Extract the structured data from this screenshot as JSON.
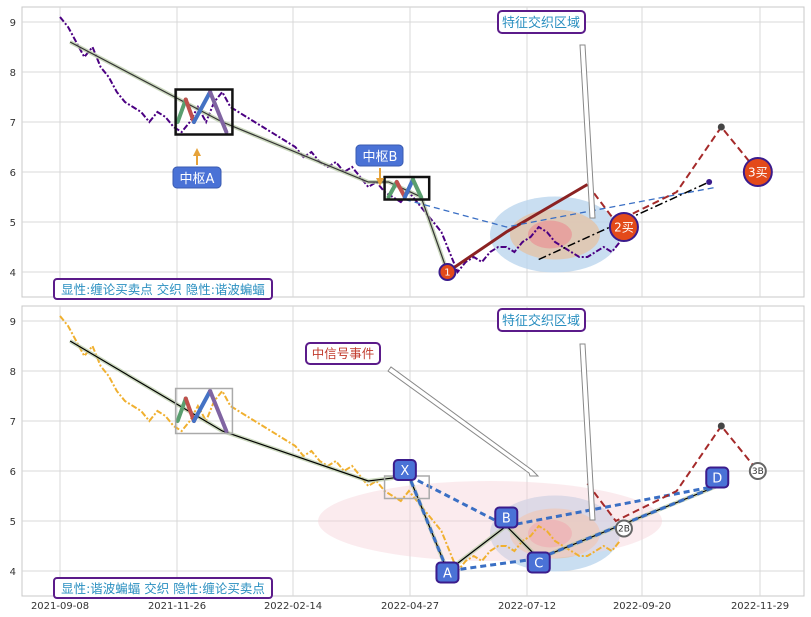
{
  "chart_data": [
    {
      "type": "line",
      "panel": "top",
      "ylim": [
        3.5,
        9.3
      ],
      "yticks": [
        4,
        5,
        6,
        7,
        8,
        9
      ],
      "grid": true,
      "series": [
        {
          "role": "price",
          "color": "#4B0082",
          "style": "dashdot",
          "points": [
            [
              0.0,
              9.1
            ],
            [
              2,
              8.9
            ],
            [
              4,
              8.6
            ],
            [
              6,
              8.3
            ],
            [
              8,
              8.5
            ],
            [
              10,
              8.1
            ],
            [
              12,
              7.9
            ],
            [
              14,
              7.6
            ],
            [
              16,
              7.4
            ],
            [
              18,
              7.3
            ],
            [
              20,
              7.2
            ],
            [
              22,
              7.0
            ],
            [
              24,
              7.2
            ],
            [
              26,
              7.1
            ],
            [
              28,
              6.9
            ],
            [
              30,
              6.8
            ],
            [
              32,
              7.0
            ],
            [
              34,
              7.3
            ],
            [
              36,
              7.0
            ],
            [
              38,
              7.4
            ],
            [
              40,
              7.6
            ],
            [
              42,
              7.3
            ],
            [
              44,
              7.2
            ],
            [
              46,
              7.1
            ],
            [
              48,
              7.0
            ],
            [
              50,
              6.9
            ],
            [
              52,
              6.8
            ],
            [
              54,
              6.7
            ],
            [
              56,
              6.6
            ],
            [
              58,
              6.5
            ],
            [
              60,
              6.3
            ],
            [
              62,
              6.4
            ],
            [
              64,
              6.2
            ],
            [
              66,
              6.1
            ],
            [
              68,
              6.2
            ],
            [
              70,
              6.0
            ],
            [
              72,
              6.1
            ],
            [
              74,
              5.9
            ],
            [
              76,
              5.7
            ],
            [
              78,
              5.8
            ],
            [
              80,
              5.6
            ],
            [
              82,
              5.5
            ],
            [
              84,
              5.4
            ],
            [
              86,
              5.6
            ],
            [
              88,
              5.4
            ],
            [
              90,
              5.2
            ],
            [
              92,
              5.0
            ],
            [
              94,
              4.8
            ],
            [
              96,
              4.4
            ],
            [
              98,
              4.0
            ],
            [
              100,
              4.2
            ],
            [
              102,
              4.3
            ],
            [
              104,
              4.2
            ],
            [
              106,
              4.4
            ],
            [
              108,
              4.5
            ],
            [
              110,
              4.5
            ],
            [
              112,
              4.4
            ],
            [
              114,
              4.6
            ],
            [
              116,
              4.7
            ],
            [
              118,
              4.9
            ],
            [
              120,
              4.8
            ],
            [
              122,
              4.6
            ],
            [
              124,
              4.5
            ],
            [
              126,
              4.4
            ],
            [
              128,
              4.3
            ],
            [
              130,
              4.3
            ],
            [
              132,
              4.4
            ],
            [
              134,
              4.5
            ],
            [
              136,
              4.4
            ],
            [
              138,
              4.6
            ]
          ]
        },
        {
          "role": "stroke-line",
          "color": "#333333",
          "points": [
            [
              2.5,
              8.6
            ],
            [
              40,
              7.0
            ],
            [
              76,
              5.8
            ],
            [
              81,
              5.8
            ],
            [
              89,
              5.5
            ],
            [
              95.5,
              4.0
            ]
          ]
        },
        {
          "role": "center-A-zigzag",
          "points": [
            [
              29,
              7.0
            ],
            [
              31,
              7.45
            ],
            [
              33,
              7.0
            ],
            [
              37,
              7.6
            ],
            [
              41,
              6.8
            ]
          ],
          "colors": [
            "#5a9e6f",
            "#c0504d",
            "#4472c4",
            "#8064a2"
          ]
        },
        {
          "role": "center-B-zigzag",
          "points": [
            [
              81,
              5.5
            ],
            [
              83,
              5.8
            ],
            [
              85,
              5.5
            ],
            [
              87,
              5.85
            ],
            [
              89,
              5.5
            ]
          ],
          "colors": [
            "#5a9e6f",
            "#c0504d",
            "#4472c4"
          ]
        },
        {
          "role": "trend-up",
          "color": "#8B2222",
          "points": [
            [
              95.5,
              4.0
            ],
            [
              110,
              4.8
            ],
            [
              130,
              5.75
            ]
          ]
        },
        {
          "role": "dashed-projection",
          "color": "#3a6fc4",
          "points": [
            [
              85,
              5.45
            ],
            [
              110,
              4.9
            ],
            [
              162,
              5.7
            ]
          ]
        },
        {
          "role": "red-dashed",
          "color": "#a52a2a",
          "points": [
            [
              130,
              5.75
            ],
            [
              137,
              5.0
            ],
            [
              152,
              5.6
            ],
            [
              163,
              6.9
            ],
            [
              172,
              6.0
            ]
          ]
        },
        {
          "role": "dashdot-black",
          "color": "#000000",
          "points": [
            [
              118,
              4.25
            ],
            [
              160,
              5.8
            ]
          ]
        }
      ],
      "labels": {
        "center_a": "中枢A",
        "center_b": "中枢B",
        "zone_title": "特征交织区域",
        "legend": "显性:缠论买卖点 交织 隐性:谐波蝙蝠",
        "point_1": "1",
        "point_2": "2买",
        "point_3": "3买"
      }
    },
    {
      "type": "line",
      "panel": "bottom",
      "ylim": [
        3.5,
        9.3
      ],
      "yticks": [
        4,
        5,
        6,
        7,
        8,
        9
      ],
      "grid": true,
      "x_tick_labels": [
        "2021-09-08",
        "2021-11-26",
        "2022-02-14",
        "2022-04-27",
        "2022-07-12",
        "2022-09-20",
        "2022-11-29"
      ],
      "series": [
        {
          "role": "price",
          "color": "#f0b030",
          "style": "dashdot",
          "points": [
            [
              0.0,
              9.1
            ],
            [
              2,
              8.9
            ],
            [
              4,
              8.6
            ],
            [
              6,
              8.3
            ],
            [
              8,
              8.5
            ],
            [
              10,
              8.1
            ],
            [
              12,
              7.9
            ],
            [
              14,
              7.6
            ],
            [
              16,
              7.4
            ],
            [
              18,
              7.3
            ],
            [
              20,
              7.2
            ],
            [
              22,
              7.0
            ],
            [
              24,
              7.2
            ],
            [
              26,
              7.1
            ],
            [
              28,
              6.9
            ],
            [
              30,
              6.8
            ],
            [
              32,
              7.0
            ],
            [
              34,
              7.3
            ],
            [
              36,
              7.0
            ],
            [
              38,
              7.4
            ],
            [
              40,
              7.6
            ],
            [
              42,
              7.3
            ],
            [
              44,
              7.2
            ],
            [
              46,
              7.1
            ],
            [
              48,
              7.0
            ],
            [
              50,
              6.9
            ],
            [
              52,
              6.8
            ],
            [
              54,
              6.7
            ],
            [
              56,
              6.6
            ],
            [
              58,
              6.5
            ],
            [
              60,
              6.3
            ],
            [
              62,
              6.4
            ],
            [
              64,
              6.2
            ],
            [
              66,
              6.1
            ],
            [
              68,
              6.2
            ],
            [
              70,
              6.0
            ],
            [
              72,
              6.1
            ],
            [
              74,
              5.9
            ],
            [
              76,
              5.7
            ],
            [
              78,
              5.8
            ],
            [
              80,
              5.6
            ],
            [
              82,
              5.5
            ],
            [
              84,
              5.4
            ],
            [
              86,
              5.6
            ],
            [
              88,
              5.4
            ],
            [
              90,
              5.2
            ],
            [
              92,
              5.0
            ],
            [
              94,
              4.8
            ],
            [
              96,
              4.4
            ],
            [
              98,
              4.0
            ],
            [
              100,
              4.2
            ],
            [
              102,
              4.3
            ],
            [
              104,
              4.2
            ],
            [
              106,
              4.4
            ],
            [
              108,
              4.5
            ],
            [
              110,
              4.5
            ],
            [
              112,
              4.4
            ],
            [
              114,
              4.6
            ],
            [
              116,
              4.7
            ],
            [
              118,
              4.9
            ],
            [
              120,
              4.8
            ],
            [
              122,
              4.6
            ],
            [
              124,
              4.5
            ],
            [
              126,
              4.4
            ],
            [
              128,
              4.3
            ],
            [
              130,
              4.3
            ],
            [
              132,
              4.4
            ],
            [
              134,
              4.5
            ],
            [
              136,
              4.4
            ],
            [
              138,
              4.6
            ]
          ]
        },
        {
          "role": "stroke-line",
          "color": "#000000",
          "points": [
            [
              2.5,
              8.6
            ],
            [
              40,
              6.8
            ],
            [
              76,
              5.8
            ],
            [
              86,
              5.9
            ],
            [
              95.5,
              4.0
            ],
            [
              110,
              4.9
            ],
            [
              118,
              4.25
            ],
            [
              162,
              5.7
            ]
          ]
        },
        {
          "role": "center-A-zigzag",
          "points": [
            [
              29,
              7.0
            ],
            [
              31,
              7.45
            ],
            [
              33,
              7.0
            ],
            [
              37,
              7.6
            ],
            [
              41,
              6.8
            ]
          ],
          "colors": [
            "#5a9e6f",
            "#c0504d",
            "#4472c4",
            "#8064a2"
          ]
        },
        {
          "role": "harmonic-dashed",
          "color": "#3a6fc4",
          "points": [
            [
              86,
              5.9
            ],
            [
              110,
              4.9
            ],
            [
              162,
              5.7
            ],
            [
              118,
              4.25
            ],
            [
              95.5,
              4.0
            ],
            [
              86,
              5.9
            ]
          ]
        },
        {
          "role": "red-dashed",
          "color": "#a52a2a",
          "points": [
            [
              130,
              5.75
            ],
            [
              137,
              5.0
            ],
            [
              152,
              5.6
            ],
            [
              163,
              6.9
            ],
            [
              172,
              6.0
            ]
          ]
        }
      ],
      "labels": {
        "signal_event": "中信号事件",
        "zone_title": "特征交织区域",
        "legend": "显性:谐波蝙蝠 交织 隐性:缠论买卖点",
        "point_x": "X",
        "point_a": "A",
        "point_b": "B",
        "point_c": "C",
        "point_d": "D",
        "point_2b": "2B",
        "point_3b": "3B"
      }
    }
  ]
}
